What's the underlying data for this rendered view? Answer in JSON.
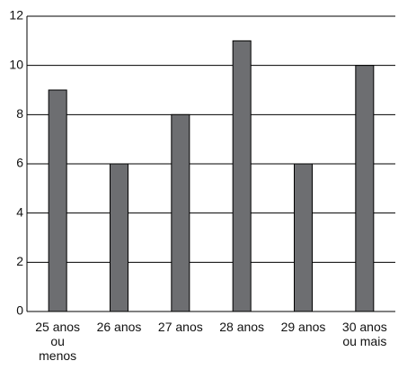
{
  "chart_data": {
    "type": "bar",
    "categories": [
      "25 anos\nou\nmenos",
      "26 anos",
      "27 anos",
      "28 anos",
      "29 anos",
      "30 anos\nou mais"
    ],
    "values": [
      9,
      6,
      8,
      11,
      6,
      10
    ],
    "color": "#6d6e71",
    "ylim": [
      0,
      12
    ],
    "yticks": [
      0,
      2,
      4,
      6,
      8,
      10,
      12
    ],
    "grid": true
  }
}
